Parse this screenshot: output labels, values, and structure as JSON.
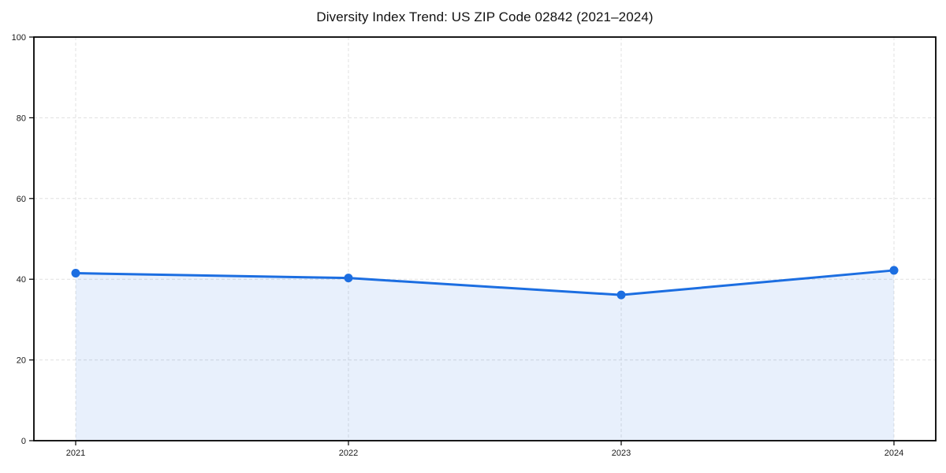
{
  "chart_data": {
    "type": "line",
    "title": "Diversity Index Trend: US ZIP Code 02842 (2021–2024)",
    "categories": [
      "2021",
      "2022",
      "2023",
      "2024"
    ],
    "series": [
      {
        "name": "Diversity Index",
        "values": [
          41.5,
          40.3,
          36.1,
          42.2
        ]
      }
    ],
    "xlabel": "",
    "ylabel": "",
    "ylim": [
      0,
      100
    ],
    "yticks": [
      0,
      20,
      40,
      60,
      80,
      100
    ],
    "grid": "on",
    "grid_style": "dashed",
    "legend": "none",
    "colors": {
      "line": "#1c6ee1",
      "marker": "#1c6ee1",
      "area_fill": "#1c6ee1",
      "area_fill_opacity": 0.1,
      "gridline": "#e0e0e0",
      "axis": "#000000",
      "text": "#1a1a1a"
    }
  }
}
